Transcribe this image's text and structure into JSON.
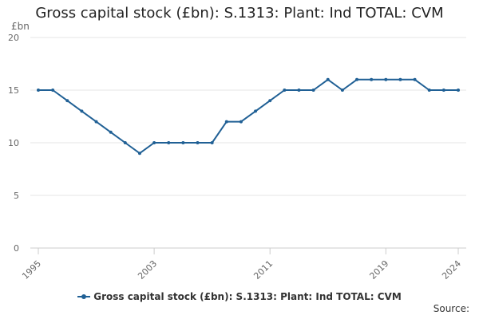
{
  "chart_data": {
    "type": "line",
    "title": "Gross capital stock (£bn): S.1313: Plant: Ind TOTAL: CVM",
    "y_unit": "£bn",
    "xlabel": "",
    "ylabel": "",
    "x": [
      1995,
      1996,
      1997,
      1998,
      1999,
      2000,
      2001,
      2002,
      2003,
      2004,
      2005,
      2006,
      2007,
      2008,
      2009,
      2010,
      2011,
      2012,
      2013,
      2014,
      2015,
      2016,
      2017,
      2018,
      2019,
      2020,
      2021,
      2022,
      2023,
      2024
    ],
    "xlim": [
      1995,
      2024
    ],
    "ylim": [
      0,
      20
    ],
    "x_ticks": [
      "1995",
      "2003",
      "2011",
      "2019",
      "2024"
    ],
    "y_ticks": [
      "0",
      "5",
      "10",
      "15",
      "20"
    ],
    "grid": "horizontal",
    "legend_position": "bottom-center",
    "series": [
      {
        "name": "Gross capital stock (£bn): S.1313: Plant: Ind TOTAL: CVM",
        "color": "#206095",
        "values": [
          15,
          15,
          14,
          13,
          12,
          11,
          10,
          9,
          10,
          10,
          10,
          10,
          10,
          12,
          12,
          13,
          14,
          15,
          15,
          15,
          16,
          15,
          16,
          16,
          16,
          16,
          16,
          15,
          15,
          15
        ]
      }
    ]
  },
  "footer": {
    "source": "Source:"
  }
}
